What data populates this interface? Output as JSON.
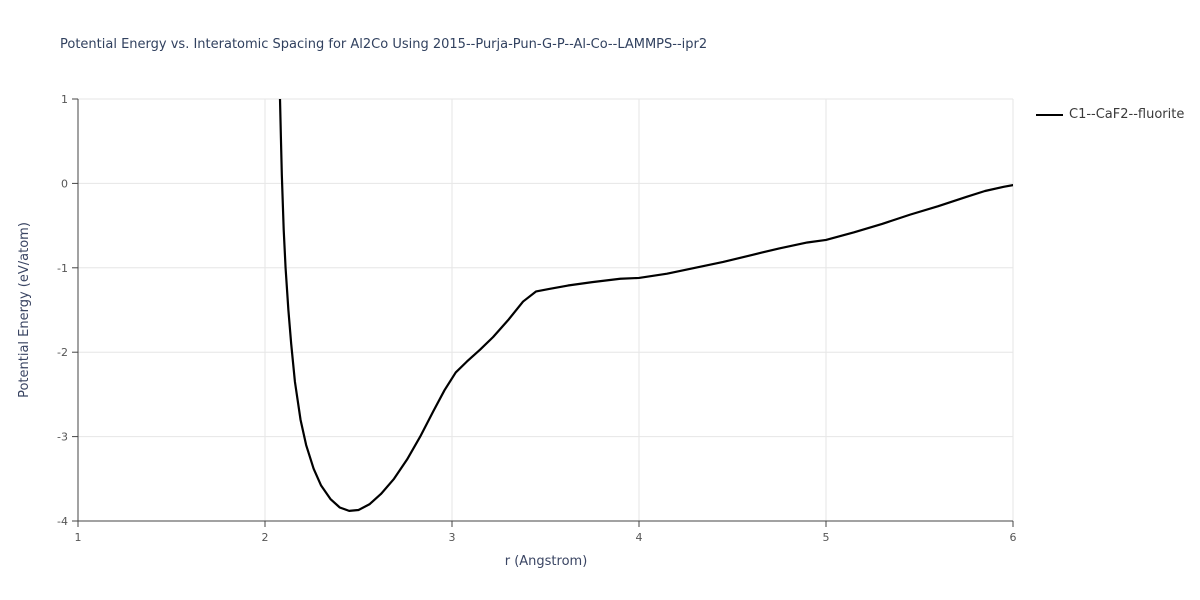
{
  "chart_data": {
    "type": "line",
    "title": "Potential Energy vs. Interatomic Spacing for Al2Co Using 2015--Purja-Pun-G-P--Al-Co--LAMMPS--ipr2",
    "xlabel": "r (Angstrom)",
    "ylabel": "Potential Energy (eV/atom)",
    "xlim": [
      1,
      6
    ],
    "ylim": [
      -4,
      1
    ],
    "x_ticks": [
      1,
      2,
      3,
      4,
      5,
      6
    ],
    "y_ticks": [
      -4,
      -3,
      -2,
      -1,
      0,
      1
    ],
    "grid": true,
    "legend_position": "top-right-outside",
    "colors": {
      "line": "#000000",
      "grid": "#e6e6e6",
      "axis": "#444444",
      "tick_label": "#555555",
      "title": "#31415f"
    },
    "series": [
      {
        "name": "C1--CaF2--fluorite",
        "color": "#000000",
        "points": [
          [
            2.08,
            1.02
          ],
          [
            2.085,
            0.55
          ],
          [
            2.09,
            0.1
          ],
          [
            2.1,
            -0.55
          ],
          [
            2.11,
            -1.0
          ],
          [
            2.125,
            -1.5
          ],
          [
            2.14,
            -1.9
          ],
          [
            2.16,
            -2.35
          ],
          [
            2.19,
            -2.8
          ],
          [
            2.22,
            -3.1
          ],
          [
            2.26,
            -3.38
          ],
          [
            2.3,
            -3.58
          ],
          [
            2.35,
            -3.74
          ],
          [
            2.4,
            -3.84
          ],
          [
            2.45,
            -3.88
          ],
          [
            2.5,
            -3.87
          ],
          [
            2.56,
            -3.8
          ],
          [
            2.62,
            -3.68
          ],
          [
            2.69,
            -3.5
          ],
          [
            2.76,
            -3.27
          ],
          [
            2.83,
            -3.0
          ],
          [
            2.9,
            -2.7
          ],
          [
            2.96,
            -2.45
          ],
          [
            3.02,
            -2.24
          ],
          [
            3.08,
            -2.11
          ],
          [
            3.15,
            -1.97
          ],
          [
            3.22,
            -1.82
          ],
          [
            3.3,
            -1.62
          ],
          [
            3.38,
            -1.4
          ],
          [
            3.45,
            -1.28
          ],
          [
            3.52,
            -1.25
          ],
          [
            3.62,
            -1.21
          ],
          [
            3.75,
            -1.17
          ],
          [
            3.9,
            -1.13
          ],
          [
            4.0,
            -1.12
          ],
          [
            4.15,
            -1.07
          ],
          [
            4.3,
            -1.0
          ],
          [
            4.45,
            -0.93
          ],
          [
            4.6,
            -0.85
          ],
          [
            4.75,
            -0.77
          ],
          [
            4.9,
            -0.7
          ],
          [
            5.0,
            -0.67
          ],
          [
            5.15,
            -0.58
          ],
          [
            5.3,
            -0.48
          ],
          [
            5.45,
            -0.37
          ],
          [
            5.6,
            -0.27
          ],
          [
            5.75,
            -0.16
          ],
          [
            5.85,
            -0.09
          ],
          [
            5.95,
            -0.04
          ],
          [
            6.0,
            -0.02
          ]
        ]
      }
    ]
  }
}
